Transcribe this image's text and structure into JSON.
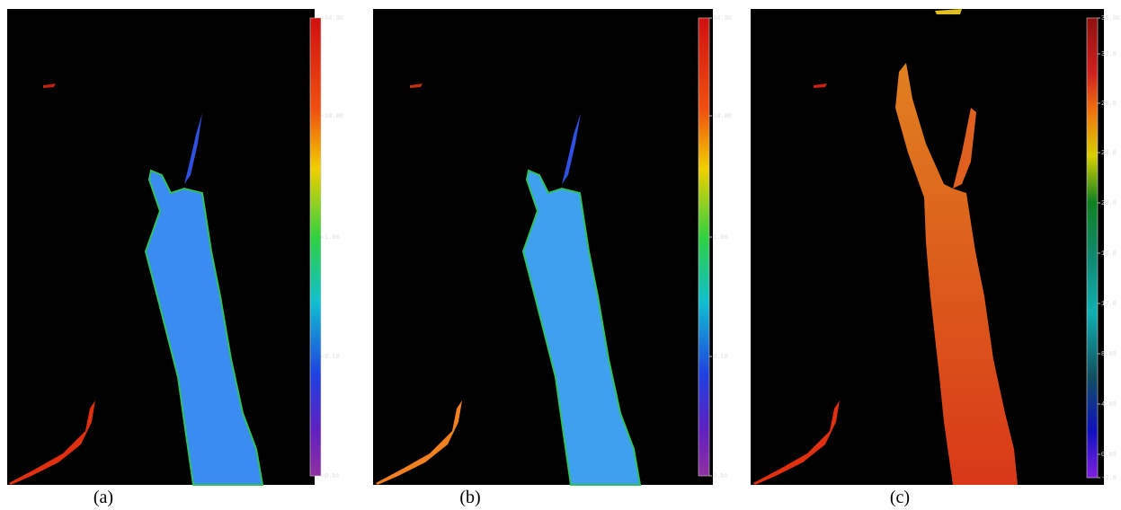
{
  "panels": [
    {
      "label": "(a)",
      "colorbar": {
        "ticks": [
          "64.00",
          "10.00",
          "1.00",
          "0.10",
          "0.01"
        ]
      }
    },
    {
      "label": "(b)",
      "colorbar": {
        "ticks": [
          "64.00",
          "10.00",
          "1.00",
          "0.10",
          "0.01"
        ]
      }
    },
    {
      "label": "(c)",
      "colorbar": {
        "ticks": [
          "35.00",
          "32.0",
          "28.0",
          "24.0",
          "20.0",
          "16.0",
          "12.0",
          "8.00",
          "4.00",
          "0.00",
          "-2.0"
        ]
      }
    }
  ]
}
